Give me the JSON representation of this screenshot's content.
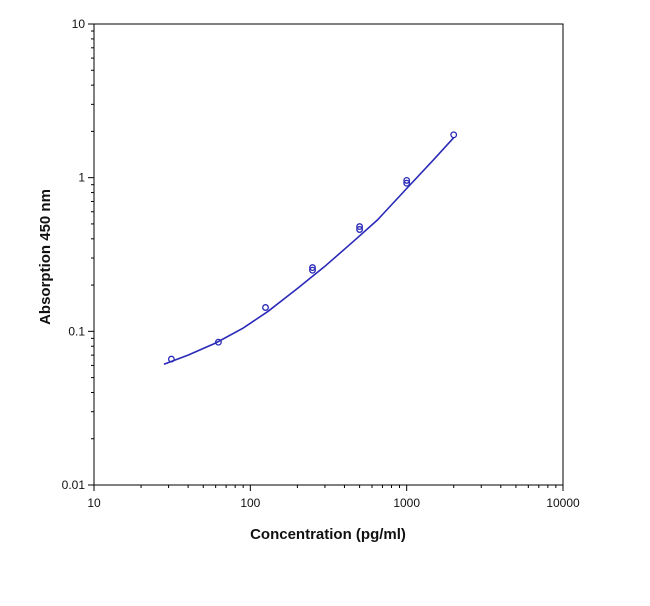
{
  "chart_data": {
    "type": "scatter",
    "title": "",
    "xlabel": "Concentration (pg/ml)",
    "ylabel": "Absorption 450 nm",
    "x_scale": "log",
    "y_scale": "log",
    "xlim": [
      10,
      10000
    ],
    "ylim": [
      0.01,
      10
    ],
    "x_ticks": [
      "10",
      "100",
      "1000",
      "10000"
    ],
    "y_ticks": [
      "0.01",
      "0.1",
      "1",
      "10"
    ],
    "grid": false,
    "series": [
      {
        "points": [
          {
            "x": 31.25,
            "y": 0.066
          },
          {
            "x": 62.5,
            "y": 0.085
          },
          {
            "x": 125,
            "y": 0.143
          },
          {
            "x": 250,
            "y": 0.25
          },
          {
            "x": 250,
            "y": 0.26
          },
          {
            "x": 500,
            "y": 0.46
          },
          {
            "x": 500,
            "y": 0.48
          },
          {
            "x": 1000,
            "y": 0.92
          },
          {
            "x": 1000,
            "y": 0.96
          },
          {
            "x": 2000,
            "y": 1.9
          }
        ],
        "fit_curve": {
          "x": [
            28,
            40,
            60,
            90,
            130,
            200,
            300,
            450,
            650,
            1000,
            1500,
            2000
          ],
          "y": [
            0.061,
            0.07,
            0.084,
            0.105,
            0.135,
            0.19,
            0.265,
            0.38,
            0.53,
            0.85,
            1.32,
            1.82
          ]
        }
      }
    ],
    "colors": {
      "series": "#2a2ab8",
      "axis": "#000000"
    }
  }
}
